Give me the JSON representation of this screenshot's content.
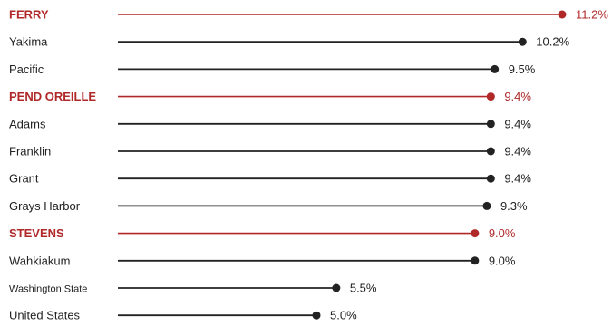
{
  "chart_data": {
    "type": "lollipop",
    "title": "",
    "xlabel": "",
    "ylabel": "",
    "value_format": "percent",
    "xlim": [
      0,
      11.2
    ],
    "grid": false,
    "legend": "none",
    "colors": {
      "default": "#222222",
      "highlight": "#b02828"
    },
    "categories": [
      {
        "label": "FERRY",
        "value": 11.2,
        "display": "11.2%",
        "highlight": true
      },
      {
        "label": "Yakima",
        "value": 10.2,
        "display": "10.2%",
        "highlight": false
      },
      {
        "label": "Pacific",
        "value": 9.5,
        "display": "9.5%",
        "highlight": false
      },
      {
        "label": "PEND OREILLE",
        "value": 9.4,
        "display": "9.4%",
        "highlight": true
      },
      {
        "label": "Adams",
        "value": 9.4,
        "display": "9.4%",
        "highlight": false
      },
      {
        "label": "Franklin",
        "value": 9.4,
        "display": "9.4%",
        "highlight": false
      },
      {
        "label": "Grant",
        "value": 9.4,
        "display": "9.4%",
        "highlight": false
      },
      {
        "label": "Grays Harbor",
        "value": 9.3,
        "display": "9.3%",
        "highlight": false
      },
      {
        "label": "STEVENS",
        "value": 9.0,
        "display": "9.0%",
        "highlight": true
      },
      {
        "label": "Wahkiakum",
        "value": 9.0,
        "display": "9.0%",
        "highlight": false
      },
      {
        "label": "Washington State",
        "value": 5.5,
        "display": "5.5%",
        "highlight": false
      },
      {
        "label": "United States",
        "value": 5.0,
        "display": "5.0%",
        "highlight": false
      }
    ]
  }
}
